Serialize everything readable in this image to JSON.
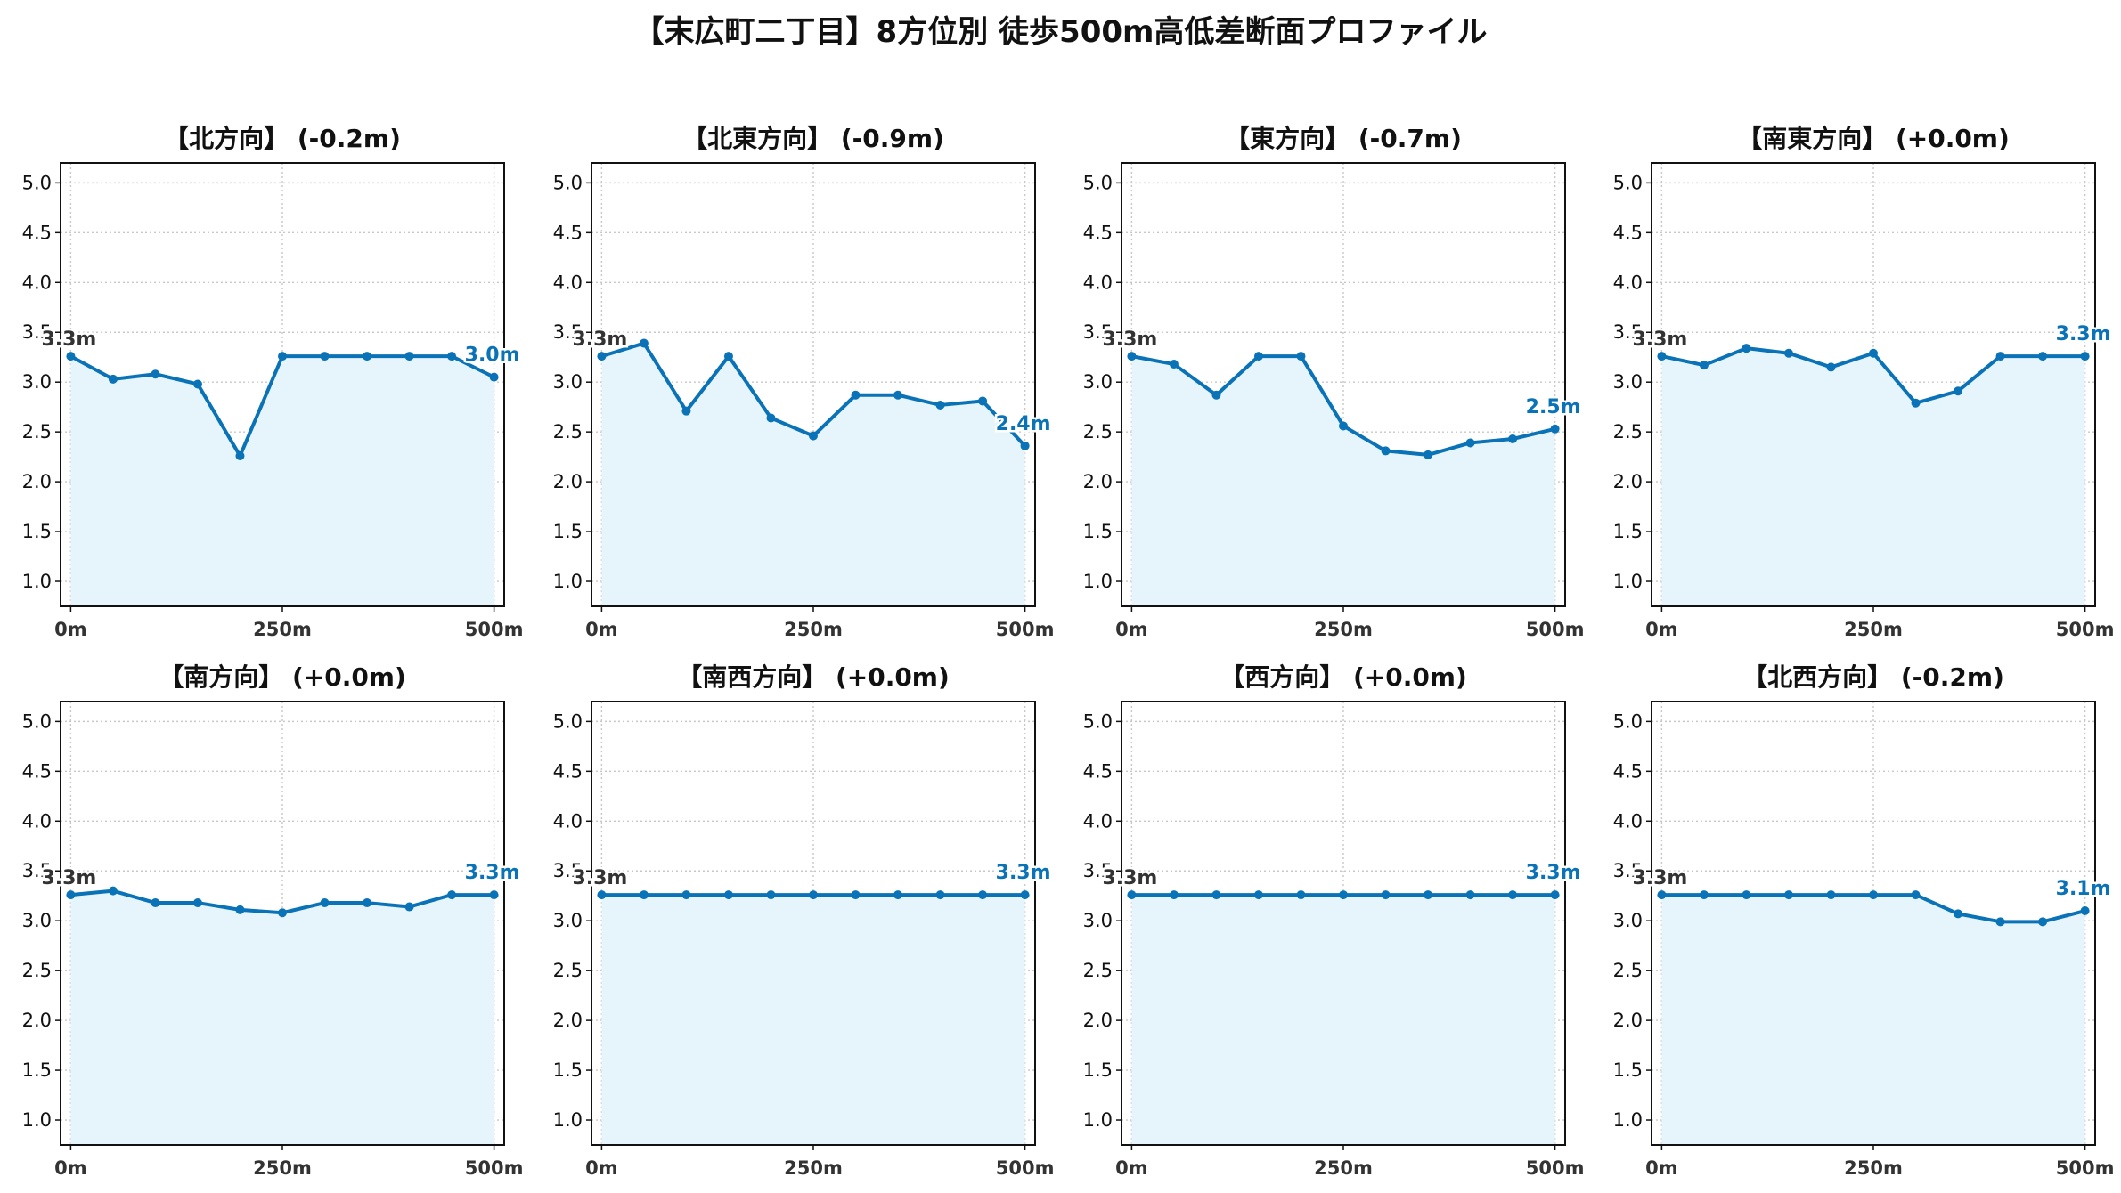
{
  "title": "【末広町二丁目】8方位別 徒歩500m高低差断面プロファイル",
  "colors": {
    "line": "#0a72b6",
    "fill": "#e6f5fb",
    "start_label": "#333333",
    "end_label": "#0a72b6"
  },
  "chart_data": [
    {
      "type": "area",
      "title": "【北方向】 (-0.2m)",
      "x": [
        0,
        50,
        100,
        150,
        200,
        250,
        300,
        350,
        400,
        450,
        500
      ],
      "values": [
        3.26,
        3.03,
        3.08,
        2.98,
        2.26,
        3.26,
        3.26,
        3.26,
        3.26,
        3.26,
        3.05
      ],
      "start_label": "3.3m",
      "end_label": "3.0m",
      "xticks": [
        "0m",
        "250m",
        "500m"
      ],
      "yticks": [
        "1.0",
        "1.5",
        "2.0",
        "2.5",
        "3.0",
        "3.5",
        "4.0",
        "4.5",
        "5.0"
      ],
      "ylim": [
        0.75,
        5.2
      ],
      "xlim": [
        -12,
        512
      ],
      "grid": true
    },
    {
      "type": "area",
      "title": "【北東方向】 (-0.9m)",
      "x": [
        0,
        50,
        100,
        150,
        200,
        250,
        300,
        350,
        400,
        450,
        500
      ],
      "values": [
        3.26,
        3.39,
        2.71,
        3.26,
        2.64,
        2.46,
        2.87,
        2.87,
        2.77,
        2.81,
        2.36
      ],
      "start_label": "3.3m",
      "end_label": "2.4m",
      "xticks": [
        "0m",
        "250m",
        "500m"
      ],
      "yticks": [
        "1.0",
        "1.5",
        "2.0",
        "2.5",
        "3.0",
        "3.5",
        "4.0",
        "4.5",
        "5.0"
      ],
      "ylim": [
        0.75,
        5.2
      ],
      "xlim": [
        -12,
        512
      ],
      "grid": true
    },
    {
      "type": "area",
      "title": "【東方向】 (-0.7m)",
      "x": [
        0,
        50,
        100,
        150,
        200,
        250,
        300,
        350,
        400,
        450,
        500
      ],
      "values": [
        3.26,
        3.18,
        2.87,
        3.26,
        3.26,
        2.56,
        2.31,
        2.27,
        2.39,
        2.43,
        2.53
      ],
      "start_label": "3.3m",
      "end_label": "2.5m",
      "xticks": [
        "0m",
        "250m",
        "500m"
      ],
      "yticks": [
        "1.0",
        "1.5",
        "2.0",
        "2.5",
        "3.0",
        "3.5",
        "4.0",
        "4.5",
        "5.0"
      ],
      "ylim": [
        0.75,
        5.2
      ],
      "xlim": [
        -12,
        512
      ],
      "grid": true
    },
    {
      "type": "area",
      "title": "【南東方向】 (+0.0m)",
      "x": [
        0,
        50,
        100,
        150,
        200,
        250,
        300,
        350,
        400,
        450,
        500
      ],
      "values": [
        3.26,
        3.17,
        3.34,
        3.29,
        3.15,
        3.29,
        2.79,
        2.91,
        3.26,
        3.26,
        3.26
      ],
      "start_label": "3.3m",
      "end_label": "3.3m",
      "xticks": [
        "0m",
        "250m",
        "500m"
      ],
      "yticks": [
        "1.0",
        "1.5",
        "2.0",
        "2.5",
        "3.0",
        "3.5",
        "4.0",
        "4.5",
        "5.0"
      ],
      "ylim": [
        0.75,
        5.2
      ],
      "xlim": [
        -12,
        512
      ],
      "grid": true
    },
    {
      "type": "area",
      "title": "【南方向】 (+0.0m)",
      "x": [
        0,
        50,
        100,
        150,
        200,
        250,
        300,
        350,
        400,
        450,
        500
      ],
      "values": [
        3.26,
        3.3,
        3.18,
        3.18,
        3.11,
        3.08,
        3.18,
        3.18,
        3.14,
        3.26,
        3.26
      ],
      "start_label": "3.3m",
      "end_label": "3.3m",
      "xticks": [
        "0m",
        "250m",
        "500m"
      ],
      "yticks": [
        "1.0",
        "1.5",
        "2.0",
        "2.5",
        "3.0",
        "3.5",
        "4.0",
        "4.5",
        "5.0"
      ],
      "ylim": [
        0.75,
        5.2
      ],
      "xlim": [
        -12,
        512
      ],
      "grid": true
    },
    {
      "type": "area",
      "title": "【南西方向】 (+0.0m)",
      "x": [
        0,
        50,
        100,
        150,
        200,
        250,
        300,
        350,
        400,
        450,
        500
      ],
      "values": [
        3.26,
        3.26,
        3.26,
        3.26,
        3.26,
        3.26,
        3.26,
        3.26,
        3.26,
        3.26,
        3.26
      ],
      "start_label": "3.3m",
      "end_label": "3.3m",
      "xticks": [
        "0m",
        "250m",
        "500m"
      ],
      "yticks": [
        "1.0",
        "1.5",
        "2.0",
        "2.5",
        "3.0",
        "3.5",
        "4.0",
        "4.5",
        "5.0"
      ],
      "ylim": [
        0.75,
        5.2
      ],
      "xlim": [
        -12,
        512
      ],
      "grid": true
    },
    {
      "type": "area",
      "title": "【西方向】 (+0.0m)",
      "x": [
        0,
        50,
        100,
        150,
        200,
        250,
        300,
        350,
        400,
        450,
        500
      ],
      "values": [
        3.26,
        3.26,
        3.26,
        3.26,
        3.26,
        3.26,
        3.26,
        3.26,
        3.26,
        3.26,
        3.26
      ],
      "start_label": "3.3m",
      "end_label": "3.3m",
      "xticks": [
        "0m",
        "250m",
        "500m"
      ],
      "yticks": [
        "1.0",
        "1.5",
        "2.0",
        "2.5",
        "3.0",
        "3.5",
        "4.0",
        "4.5",
        "5.0"
      ],
      "ylim": [
        0.75,
        5.2
      ],
      "xlim": [
        -12,
        512
      ],
      "grid": true
    },
    {
      "type": "area",
      "title": "【北西方向】 (-0.2m)",
      "x": [
        0,
        50,
        100,
        150,
        200,
        250,
        300,
        350,
        400,
        450,
        500
      ],
      "values": [
        3.26,
        3.26,
        3.26,
        3.26,
        3.26,
        3.26,
        3.26,
        3.07,
        2.99,
        2.99,
        3.1
      ],
      "start_label": "3.3m",
      "end_label": "3.1m",
      "xticks": [
        "0m",
        "250m",
        "500m"
      ],
      "yticks": [
        "1.0",
        "1.5",
        "2.0",
        "2.5",
        "3.0",
        "3.5",
        "4.0",
        "4.5",
        "5.0"
      ],
      "ylim": [
        0.75,
        5.2
      ],
      "xlim": [
        -12,
        512
      ],
      "grid": true
    }
  ]
}
